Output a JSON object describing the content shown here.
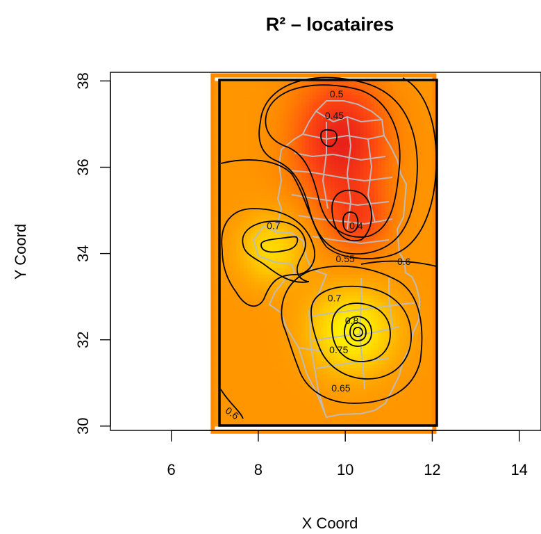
{
  "chart_data": {
    "type": "heatmap",
    "title": "R² – locataires",
    "xlabel": "X Coord",
    "ylabel": "Y Coord",
    "xlim": [
      4.6,
      14.5
    ],
    "ylim": [
      29.9,
      38.2
    ],
    "x_ticks": [
      6,
      8,
      10,
      12,
      14
    ],
    "y_ticks": [
      30,
      32,
      34,
      36,
      38
    ],
    "x_tick_labels": [
      "6",
      "8",
      "10",
      "12",
      "14"
    ],
    "y_tick_labels": [
      "30",
      "32",
      "34",
      "36",
      "38"
    ],
    "grid_extent": {
      "x": [
        7,
        12
      ],
      "y": [
        30,
        38
      ]
    },
    "color_scale": [
      "#e8221a",
      "#ff4a10",
      "#ff8a00",
      "#ffc400",
      "#ffee00"
    ],
    "value_range": [
      0.4,
      0.8
    ],
    "contour_levels": [
      0.4,
      0.45,
      0.5,
      0.55,
      0.6,
      0.65,
      0.7,
      0.75,
      0.8
    ],
    "contour_labels": [
      {
        "text": "0.5",
        "x": 9.8,
        "y": 37.7
      },
      {
        "text": "0.45",
        "x": 9.75,
        "y": 37.2
      },
      {
        "text": "0.4",
        "x": 10.25,
        "y": 34.65
      },
      {
        "text": "0.7",
        "x": 8.35,
        "y": 34.65
      },
      {
        "text": "0.55",
        "x": 10.0,
        "y": 33.88
      },
      {
        "text": "0.6",
        "x": 11.35,
        "y": 33.82
      },
      {
        "text": "0.7",
        "x": 9.75,
        "y": 32.97
      },
      {
        "text": "0.8",
        "x": 10.15,
        "y": 32.45
      },
      {
        "text": "0.75",
        "x": 9.85,
        "y": 31.77
      },
      {
        "text": "0.65",
        "x": 9.9,
        "y": 30.88
      },
      {
        "text": "0.6",
        "x": 7.4,
        "y": 30.3
      }
    ],
    "hotspots": [
      {
        "x": 9.5,
        "y": 36.6,
        "value": 0.41
      },
      {
        "x": 10.3,
        "y": 34.7,
        "value": 0.39
      },
      {
        "x": 8.4,
        "y": 34.15,
        "value": 0.73
      },
      {
        "x": 10.15,
        "y": 32.2,
        "value": 0.82
      }
    ]
  }
}
